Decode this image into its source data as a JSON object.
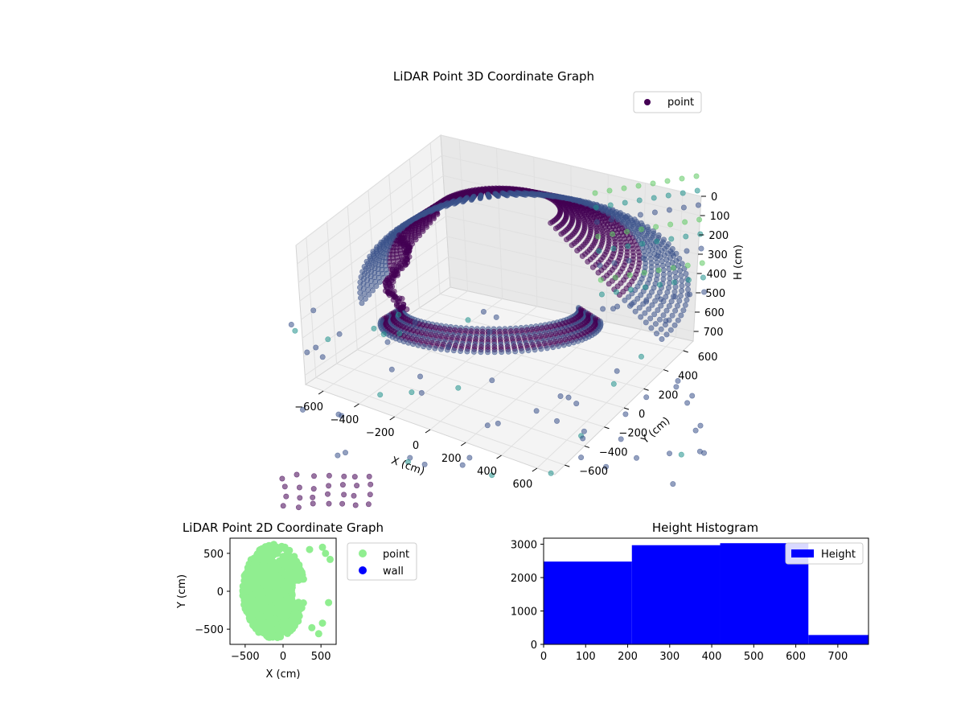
{
  "chart_data": [
    {
      "type": "scatter",
      "title": "LiDAR Point 3D Coordinate Graph",
      "xlabel": "X (cm)",
      "ylabel": "Y (cm)",
      "zlabel": "H (cm)",
      "xlim": [
        -700,
        700
      ],
      "ylim": [
        -700,
        700
      ],
      "zlim": [
        0,
        750
      ],
      "z_inverted": true,
      "x_ticks": [
        "-600",
        "-400",
        "-200",
        "0",
        "200",
        "400",
        "600"
      ],
      "y_ticks": [
        "-600",
        "-400",
        "-200",
        "0",
        "200",
        "400",
        "600"
      ],
      "z_ticks": [
        "0",
        "100",
        "200",
        "300",
        "400",
        "500",
        "600",
        "700"
      ],
      "legend": {
        "position": "top-right",
        "entries": [
          {
            "label": "point",
            "color": "#440154"
          }
        ]
      },
      "colormap": [
        "#440154",
        "#3b528b",
        "#21918c",
        "#5ec962"
      ],
      "grid": true,
      "series": [
        {
          "name": "point"
        }
      ]
    },
    {
      "type": "scatter",
      "title": "LiDAR Point 2D Coordinate Graph",
      "xlabel": "X (cm)",
      "ylabel": "Y (cm)",
      "xlim": [
        -700,
        700
      ],
      "ylim": [
        -700,
        700
      ],
      "x_ticks": [
        "-500",
        "0",
        "500"
      ],
      "y_ticks": [
        "-500",
        "0",
        "500"
      ],
      "legend": {
        "position": "outside-right",
        "entries": [
          {
            "label": "point",
            "color": "#90ee90"
          },
          {
            "label": "wall",
            "color": "#0000ff"
          }
        ]
      },
      "grid": false
    },
    {
      "type": "bar",
      "title": "Height Histogram",
      "xlabel": "",
      "ylabel": "",
      "bins": [
        {
          "x0": 0,
          "x1": 210,
          "value": 2480
        },
        {
          "x0": 210,
          "x1": 420,
          "value": 2970
        },
        {
          "x0": 420,
          "x1": 630,
          "value": 3030
        },
        {
          "x0": 630,
          "x1": 773,
          "value": 280
        }
      ],
      "xlim": [
        0,
        773
      ],
      "ylim": [
        0,
        3180
      ],
      "x_ticks": [
        "0",
        "100",
        "200",
        "300",
        "400",
        "500",
        "600",
        "700"
      ],
      "y_ticks": [
        "0",
        "1000",
        "2000",
        "3000"
      ],
      "color": "#0000ff",
      "legend": {
        "position": "top-right",
        "entries": [
          {
            "label": "Height",
            "color": "#0000ff"
          }
        ]
      },
      "grid": false
    }
  ]
}
